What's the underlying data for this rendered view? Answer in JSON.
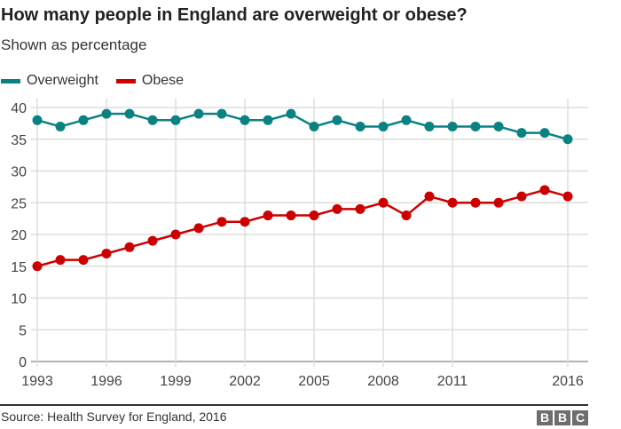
{
  "chart_data": {
    "type": "line",
    "title": "How many people in England are overweight or obese?",
    "subtitle": "Shown as percentage",
    "xlabel": "",
    "ylabel": "",
    "x": [
      1993,
      1994,
      1995,
      1996,
      1997,
      1998,
      1999,
      2000,
      2001,
      2002,
      2003,
      2004,
      2005,
      2006,
      2007,
      2008,
      2009,
      2010,
      2011,
      2012,
      2013,
      2014,
      2015,
      2016
    ],
    "x_ticks": [
      "1993",
      "1996",
      "1999",
      "2002",
      "2005",
      "2008",
      "2011",
      "2016"
    ],
    "y_ticks": [
      "0",
      "5",
      "10",
      "15",
      "20",
      "25",
      "30",
      "35",
      "40"
    ],
    "ylim": [
      0,
      40
    ],
    "grid": true,
    "legend_position": "top-left",
    "series": [
      {
        "name": "Overweight",
        "color": "#0a8282",
        "values": [
          38,
          37,
          38,
          39,
          39,
          38,
          38,
          39,
          39,
          38,
          38,
          39,
          37,
          38,
          37,
          37,
          38,
          37,
          37,
          37,
          37,
          36,
          36,
          35
        ]
      },
      {
        "name": "Obese",
        "color": "#cc0000",
        "values": [
          15,
          16,
          16,
          17,
          18,
          19,
          20,
          21,
          22,
          22,
          23,
          23,
          23,
          24,
          24,
          25,
          23,
          26,
          25,
          25,
          25,
          26,
          27,
          26
        ]
      }
    ]
  },
  "footer": {
    "source": "Source: Health Survey for England, 2016",
    "logo": [
      "B",
      "B",
      "C"
    ]
  }
}
